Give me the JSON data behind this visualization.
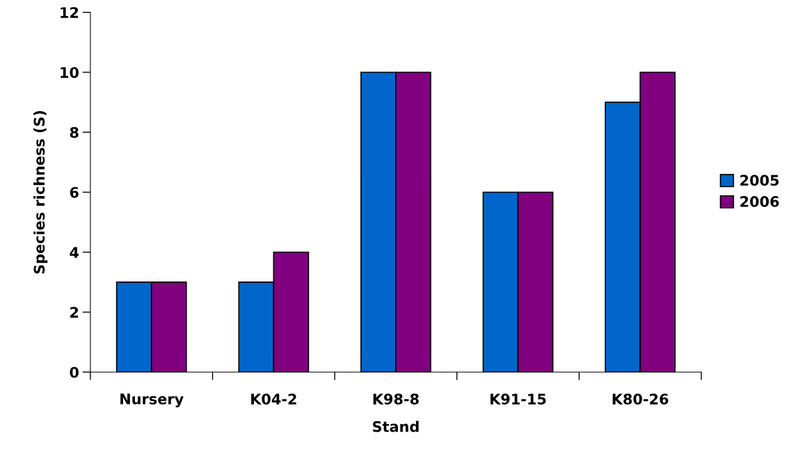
{
  "chart_data": {
    "type": "bar",
    "xlabel": "Stand",
    "ylabel": "Species richness (S)",
    "categories": [
      "Nursery",
      "K04-2",
      "K98-8",
      "K91-15",
      "K80-26"
    ],
    "series": [
      {
        "name": "2005",
        "color": "#0066cc",
        "values": [
          3,
          3,
          10,
          6,
          9
        ]
      },
      {
        "name": "2006",
        "color": "#800080",
        "values": [
          3,
          4,
          10,
          6,
          10
        ]
      }
    ],
    "ylim": [
      0,
      12
    ],
    "yticks": [
      0,
      2,
      4,
      6,
      8,
      10,
      12
    ],
    "grid": false,
    "legend": "right"
  }
}
